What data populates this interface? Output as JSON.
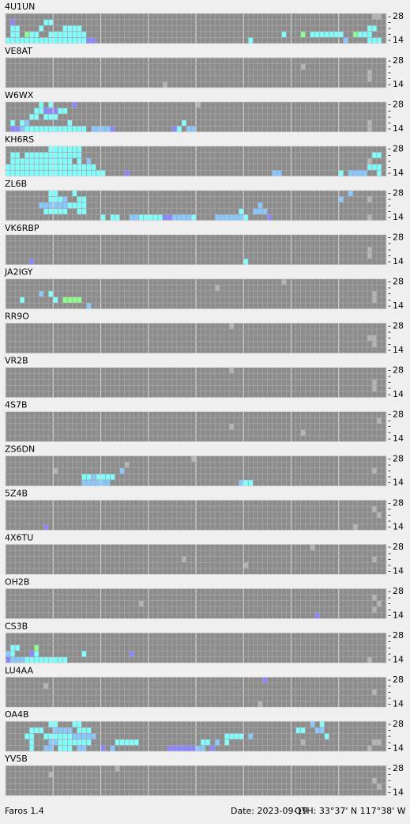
{
  "app": {
    "name": "Faros 1.4",
    "date": "Date: 2023-09-19",
    "qth": "QTH: 33°37' N  117°38' W",
    "band_top": "28",
    "band_bottom": "14",
    "band_mark": "-",
    "palette": [
      "#80ffff",
      "#88c8ff",
      "#8a86ff",
      "#8cff8c",
      "#b4b4b4"
    ],
    "stations": [
      {
        "name": "4U1UN",
        "runs": [
          [
            1,
            1,
            1,
            2
          ],
          [
            8,
            2,
            1,
            0
          ],
          [
            1,
            2,
            2,
            0
          ],
          [
            7,
            1,
            2,
            0
          ],
          [
            12,
            4,
            2,
            0
          ],
          [
            76,
            2,
            2,
            0
          ],
          [
            1,
            2,
            3,
            0
          ],
          [
            4,
            1,
            3,
            3
          ],
          [
            5,
            2,
            3,
            0
          ],
          [
            9,
            8,
            3,
            0
          ],
          [
            58,
            1,
            3,
            0
          ],
          [
            62,
            1,
            3,
            3
          ],
          [
            64,
            7,
            3,
            0
          ],
          [
            73,
            1,
            3,
            3
          ],
          [
            74,
            3,
            3,
            0
          ],
          [
            0,
            17,
            4,
            0
          ],
          [
            17,
            2,
            4,
            2
          ],
          [
            51,
            1,
            4,
            0
          ],
          [
            71,
            1,
            4,
            1
          ],
          [
            76,
            3,
            4,
            0
          ],
          [
            77,
            2,
            0,
            4
          ]
        ]
      },
      {
        "name": "VE8AT",
        "runs": [
          [
            33,
            1,
            4,
            4
          ],
          [
            62,
            1,
            1,
            4
          ],
          [
            76,
            1,
            2,
            4
          ],
          [
            76,
            1,
            3,
            4
          ]
        ]
      },
      {
        "name": "W6WX",
        "runs": [
          [
            7,
            1,
            0,
            0
          ],
          [
            9,
            1,
            0,
            0
          ],
          [
            14,
            1,
            0,
            2
          ],
          [
            40,
            1,
            0,
            4
          ],
          [
            6,
            2,
            1,
            0
          ],
          [
            8,
            3,
            1,
            2
          ],
          [
            11,
            2,
            1,
            0
          ],
          [
            5,
            2,
            2,
            0
          ],
          [
            8,
            3,
            2,
            0
          ],
          [
            1,
            1,
            3,
            0
          ],
          [
            3,
            1,
            3,
            0
          ],
          [
            4,
            1,
            3,
            1
          ],
          [
            13,
            1,
            3,
            0
          ],
          [
            37,
            1,
            3,
            0
          ],
          [
            76,
            1,
            3,
            4
          ],
          [
            1,
            2,
            4,
            2
          ],
          [
            3,
            1,
            4,
            1
          ],
          [
            4,
            13,
            4,
            0
          ],
          [
            18,
            5,
            4,
            1
          ],
          [
            22,
            1,
            4,
            2
          ],
          [
            35,
            1,
            4,
            2
          ],
          [
            36,
            1,
            4,
            0
          ],
          [
            38,
            2,
            4,
            1
          ],
          [
            76,
            1,
            4,
            4
          ]
        ]
      },
      {
        "name": "KH6RS",
        "runs": [
          [
            9,
            7,
            0,
            0
          ],
          [
            1,
            2,
            1,
            0
          ],
          [
            4,
            12,
            1,
            0
          ],
          [
            77,
            2,
            1,
            0
          ],
          [
            1,
            13,
            2,
            0
          ],
          [
            15,
            1,
            2,
            0
          ],
          [
            17,
            1,
            2,
            1
          ],
          [
            76,
            1,
            2,
            4
          ],
          [
            0,
            19,
            3,
            0
          ],
          [
            76,
            3,
            3,
            0
          ],
          [
            0,
            21,
            4,
            0
          ],
          [
            25,
            1,
            4,
            2
          ],
          [
            56,
            2,
            4,
            1
          ],
          [
            70,
            1,
            4,
            0
          ],
          [
            72,
            4,
            4,
            1
          ],
          [
            78,
            1,
            4,
            0
          ]
        ]
      },
      {
        "name": "ZL6B",
        "runs": [
          [
            9,
            2,
            0,
            0
          ],
          [
            14,
            1,
            0,
            0
          ],
          [
            72,
            1,
            0,
            1
          ],
          [
            9,
            3,
            1,
            0
          ],
          [
            12,
            1,
            1,
            1
          ],
          [
            15,
            2,
            1,
            0
          ],
          [
            70,
            1,
            1,
            1
          ],
          [
            76,
            1,
            1,
            4
          ],
          [
            7,
            6,
            2,
            1
          ],
          [
            13,
            4,
            2,
            0
          ],
          [
            53,
            1,
            2,
            1
          ],
          [
            8,
            5,
            3,
            0
          ],
          [
            15,
            2,
            3,
            0
          ],
          [
            49,
            1,
            3,
            0
          ],
          [
            52,
            2,
            3,
            1
          ],
          [
            54,
            1,
            3,
            1
          ],
          [
            20,
            1,
            4,
            0
          ],
          [
            22,
            2,
            4,
            0
          ],
          [
            26,
            2,
            4,
            1
          ],
          [
            28,
            5,
            4,
            0
          ],
          [
            33,
            2,
            4,
            2
          ],
          [
            35,
            4,
            4,
            1
          ],
          [
            39,
            1,
            4,
            0
          ],
          [
            44,
            6,
            4,
            1
          ],
          [
            50,
            1,
            4,
            0
          ],
          [
            55,
            1,
            4,
            2
          ],
          [
            76,
            1,
            4,
            4
          ]
        ]
      },
      {
        "name": "VK6RBP",
        "runs": [
          [
            5,
            1,
            4,
            2
          ],
          [
            50,
            1,
            4,
            0
          ],
          [
            76,
            1,
            2,
            4
          ],
          [
            76,
            1,
            3,
            4
          ]
        ]
      },
      {
        "name": "JA2IGY",
        "runs": [
          [
            7,
            1,
            2,
            1
          ],
          [
            9,
            1,
            2,
            0
          ],
          [
            3,
            1,
            3,
            0
          ],
          [
            10,
            1,
            3,
            0
          ],
          [
            12,
            4,
            3,
            3
          ],
          [
            17,
            1,
            4,
            1
          ],
          [
            58,
            1,
            0,
            4
          ],
          [
            44,
            1,
            1,
            4
          ],
          [
            77,
            1,
            2,
            4
          ],
          [
            77,
            1,
            3,
            4
          ]
        ]
      },
      {
        "name": "RR9O",
        "runs": [
          [
            47,
            1,
            0,
            4
          ],
          [
            76,
            2,
            2,
            4
          ],
          [
            77,
            1,
            3,
            4
          ]
        ]
      },
      {
        "name": "VR2B",
        "runs": [
          [
            47,
            1,
            0,
            4
          ],
          [
            77,
            1,
            2,
            4
          ],
          [
            77,
            1,
            3,
            4
          ]
        ]
      },
      {
        "name": "4S7B",
        "runs": [
          [
            47,
            1,
            2,
            4
          ],
          [
            62,
            1,
            3,
            4
          ],
          [
            78,
            1,
            1,
            4
          ]
        ]
      },
      {
        "name": "ZS6DN",
        "runs": [
          [
            39,
            1,
            0,
            4
          ],
          [
            25,
            1,
            1,
            4
          ],
          [
            10,
            1,
            2,
            4
          ],
          [
            24,
            1,
            2,
            1
          ],
          [
            77,
            1,
            2,
            4
          ],
          [
            16,
            2,
            3,
            0
          ],
          [
            18,
            1,
            3,
            1
          ],
          [
            19,
            4,
            3,
            0
          ],
          [
            16,
            6,
            4,
            1
          ],
          [
            49,
            1,
            4,
            1
          ],
          [
            50,
            2,
            4,
            0
          ]
        ]
      },
      {
        "name": "5Z4B",
        "runs": [
          [
            8,
            1,
            4,
            2
          ],
          [
            77,
            1,
            1,
            4
          ],
          [
            78,
            1,
            2,
            4
          ],
          [
            73,
            1,
            4,
            4
          ]
        ]
      },
      {
        "name": "4X6TU",
        "runs": [
          [
            37,
            1,
            2,
            4
          ],
          [
            50,
            1,
            3,
            4
          ],
          [
            64,
            1,
            0,
            4
          ],
          [
            77,
            1,
            2,
            4
          ]
        ]
      },
      {
        "name": "OH2B",
        "runs": [
          [
            28,
            1,
            2,
            4
          ],
          [
            65,
            1,
            4,
            2
          ],
          [
            77,
            1,
            1,
            4
          ],
          [
            78,
            1,
            2,
            4
          ],
          [
            77,
            1,
            3,
            4
          ]
        ]
      },
      {
        "name": "CS3B",
        "runs": [
          [
            1,
            2,
            2,
            0
          ],
          [
            6,
            1,
            2,
            3
          ],
          [
            0,
            1,
            3,
            1
          ],
          [
            1,
            1,
            3,
            0
          ],
          [
            5,
            1,
            3,
            2
          ],
          [
            6,
            1,
            3,
            0
          ],
          [
            16,
            1,
            3,
            0
          ],
          [
            26,
            1,
            3,
            2
          ],
          [
            0,
            1,
            4,
            2
          ],
          [
            1,
            3,
            4,
            1
          ],
          [
            4,
            9,
            4,
            0
          ],
          [
            76,
            1,
            4,
            4
          ]
        ]
      },
      {
        "name": "LU4AA",
        "runs": [
          [
            8,
            1,
            1,
            4
          ],
          [
            54,
            1,
            0,
            2
          ],
          [
            77,
            1,
            2,
            4
          ],
          [
            53,
            1,
            4,
            4
          ]
        ]
      },
      {
        "name": "OA4B",
        "runs": [
          [
            9,
            2,
            0,
            0
          ],
          [
            14,
            2,
            0,
            0
          ],
          [
            64,
            1,
            0,
            1
          ],
          [
            66,
            1,
            0,
            0
          ],
          [
            5,
            3,
            1,
            0
          ],
          [
            10,
            4,
            1,
            1
          ],
          [
            15,
            3,
            1,
            0
          ],
          [
            61,
            2,
            1,
            0
          ],
          [
            65,
            2,
            1,
            1
          ],
          [
            4,
            2,
            2,
            0
          ],
          [
            8,
            6,
            2,
            0
          ],
          [
            14,
            5,
            2,
            1
          ],
          [
            46,
            4,
            2,
            0
          ],
          [
            51,
            1,
            2,
            1
          ],
          [
            67,
            1,
            2,
            0
          ],
          [
            5,
            1,
            3,
            0
          ],
          [
            9,
            2,
            3,
            1
          ],
          [
            11,
            7,
            3,
            0
          ],
          [
            23,
            5,
            3,
            0
          ],
          [
            41,
            2,
            3,
            0
          ],
          [
            44,
            1,
            3,
            1
          ],
          [
            46,
            1,
            3,
            0
          ],
          [
            62,
            1,
            3,
            4
          ],
          [
            77,
            2,
            3,
            4
          ],
          [
            5,
            1,
            4,
            0
          ],
          [
            8,
            2,
            4,
            1
          ],
          [
            11,
            3,
            4,
            0
          ],
          [
            15,
            2,
            4,
            1
          ],
          [
            20,
            1,
            4,
            2
          ],
          [
            22,
            1,
            4,
            1
          ],
          [
            34,
            2,
            4,
            2
          ],
          [
            36,
            4,
            4,
            2
          ],
          [
            40,
            2,
            4,
            1
          ],
          [
            43,
            1,
            4,
            2
          ],
          [
            76,
            1,
            4,
            4
          ]
        ]
      },
      {
        "name": "YV5B",
        "runs": [
          [
            9,
            1,
            1,
            4
          ],
          [
            23,
            1,
            0,
            4
          ],
          [
            77,
            1,
            2,
            4
          ],
          [
            78,
            1,
            3,
            4
          ]
        ]
      }
    ]
  }
}
